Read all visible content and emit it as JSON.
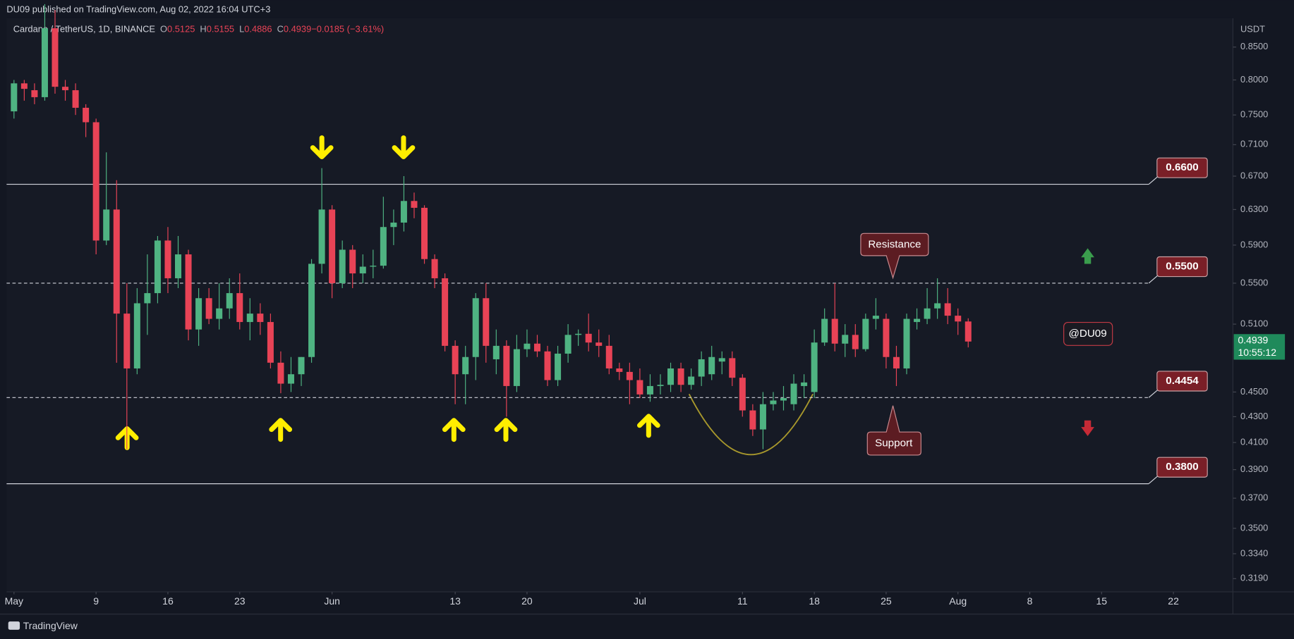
{
  "header": "DU09 published on TradingView.com, Aug 02, 2022 16:04 UTC+3",
  "footer": "TradingView",
  "chart_data": {
    "type": "candlestick",
    "legend": {
      "symbol": "Cardano / TetherUS, 1D, BINANCE",
      "items": [
        "O",
        "0.5125",
        "H",
        "0.5155",
        "L",
        "0.4886",
        "C",
        "0.4939",
        "−0.0185 (−3.61%)"
      ]
    },
    "y_axis_label": "USDT",
    "x": [
      0,
      1,
      2,
      3,
      4,
      5,
      6,
      7,
      8,
      9,
      10,
      11,
      12,
      13,
      14,
      15,
      16,
      17,
      18,
      19,
      20,
      21,
      22,
      23,
      24,
      25,
      26,
      27,
      28,
      29,
      30,
      31,
      32,
      33,
      34,
      35,
      36,
      37,
      38,
      39,
      40,
      41,
      42,
      43,
      44,
      45,
      46,
      47,
      48,
      49,
      50,
      51,
      52,
      53,
      54,
      55,
      56,
      57,
      58,
      59,
      60,
      61,
      62,
      63,
      64,
      65,
      66,
      67,
      68,
      69,
      70,
      71,
      72,
      73,
      74,
      75,
      76,
      77,
      78,
      79,
      80,
      81,
      82,
      83,
      84,
      85,
      86,
      87,
      88,
      89,
      90,
      91,
      92,
      93
    ],
    "open": [
      0.755,
      0.795,
      0.785,
      0.775,
      0.88,
      0.79,
      0.785,
      0.76,
      0.74,
      0.595,
      0.63,
      0.52,
      0.47,
      0.53,
      0.54,
      0.595,
      0.555,
      0.58,
      0.505,
      0.535,
      0.515,
      0.525,
      0.54,
      0.512,
      0.52,
      0.512,
      0.475,
      0.457,
      0.465,
      0.48,
      0.57,
      0.63,
      0.55,
      0.585,
      0.56,
      0.567,
      0.568,
      0.61,
      0.615,
      0.64,
      0.632,
      0.575,
      0.555,
      0.49,
      0.465,
      0.48,
      0.535,
      0.478,
      0.49,
      0.455,
      0.487,
      0.492,
      0.485,
      0.46,
      0.483,
      0.5,
      0.501,
      0.493,
      0.49,
      0.47,
      0.467,
      0.46,
      0.448,
      0.455,
      0.456,
      0.47,
      0.456,
      0.463,
      0.465,
      0.476,
      0.479,
      0.462,
      0.435,
      0.42,
      0.44,
      0.443,
      0.44,
      0.455,
      0.45,
      0.493,
      0.515,
      0.492,
      0.5,
      0.487,
      0.515,
      0.515,
      0.48,
      0.47,
      0.512,
      0.515,
      0.525,
      0.53,
      0.518,
      0.5125
    ],
    "high": [
      0.8,
      0.8,
      0.795,
      0.92,
      0.91,
      0.8,
      0.795,
      0.765,
      0.745,
      0.7,
      0.665,
      0.55,
      0.545,
      0.58,
      0.6,
      0.61,
      0.6,
      0.585,
      0.545,
      0.545,
      0.55,
      0.555,
      0.56,
      0.535,
      0.53,
      0.52,
      0.485,
      0.48,
      0.48,
      0.575,
      0.68,
      0.635,
      0.595,
      0.59,
      0.58,
      0.585,
      0.645,
      0.63,
      0.67,
      0.65,
      0.635,
      0.58,
      0.56,
      0.495,
      0.49,
      0.54,
      0.55,
      0.505,
      0.495,
      0.5,
      0.505,
      0.5,
      0.49,
      0.49,
      0.51,
      0.505,
      0.52,
      0.505,
      0.5,
      0.475,
      0.475,
      0.47,
      0.465,
      0.465,
      0.475,
      0.475,
      0.47,
      0.485,
      0.49,
      0.485,
      0.485,
      0.465,
      0.44,
      0.45,
      0.45,
      0.455,
      0.465,
      0.465,
      0.505,
      0.525,
      0.55,
      0.51,
      0.51,
      0.52,
      0.535,
      0.52,
      0.49,
      0.52,
      0.525,
      0.545,
      0.555,
      0.545,
      0.525,
      0.5155
    ],
    "low": [
      0.745,
      0.77,
      0.765,
      0.77,
      0.78,
      0.77,
      0.75,
      0.72,
      0.58,
      0.59,
      0.475,
      0.405,
      0.465,
      0.5,
      0.53,
      0.54,
      0.545,
      0.495,
      0.49,
      0.51,
      0.505,
      0.515,
      0.505,
      0.495,
      0.5,
      0.47,
      0.449,
      0.45,
      0.455,
      0.475,
      0.56,
      0.535,
      0.545,
      0.545,
      0.55,
      0.555,
      0.565,
      0.59,
      0.605,
      0.62,
      0.57,
      0.545,
      0.485,
      0.44,
      0.44,
      0.46,
      0.475,
      0.465,
      0.43,
      0.45,
      0.48,
      0.48,
      0.455,
      0.455,
      0.475,
      0.49,
      0.485,
      0.48,
      0.465,
      0.46,
      0.44,
      0.445,
      0.442,
      0.448,
      0.45,
      0.45,
      0.452,
      0.455,
      0.46,
      0.465,
      0.455,
      0.43,
      0.415,
      0.405,
      0.435,
      0.435,
      0.435,
      0.445,
      0.445,
      0.49,
      0.485,
      0.48,
      0.48,
      0.485,
      0.505,
      0.47,
      0.455,
      0.465,
      0.505,
      0.51,
      0.515,
      0.51,
      0.5,
      0.4886
    ],
    "close": [
      0.795,
      0.787,
      0.775,
      0.88,
      0.79,
      0.785,
      0.76,
      0.74,
      0.595,
      0.63,
      0.52,
      0.47,
      0.53,
      0.54,
      0.595,
      0.555,
      0.58,
      0.505,
      0.535,
      0.515,
      0.525,
      0.54,
      0.512,
      0.52,
      0.512,
      0.475,
      0.457,
      0.465,
      0.48,
      0.57,
      0.63,
      0.55,
      0.585,
      0.56,
      0.567,
      0.568,
      0.61,
      0.615,
      0.64,
      0.632,
      0.575,
      0.555,
      0.49,
      0.465,
      0.48,
      0.535,
      0.49,
      0.49,
      0.455,
      0.487,
      0.492,
      0.485,
      0.46,
      0.483,
      0.5,
      0.501,
      0.493,
      0.49,
      0.47,
      0.467,
      0.46,
      0.448,
      0.455,
      0.456,
      0.47,
      0.456,
      0.463,
      0.478,
      0.48,
      0.479,
      0.462,
      0.435,
      0.42,
      0.44,
      0.443,
      0.445,
      0.457,
      0.458,
      0.493,
      0.515,
      0.492,
      0.5,
      0.487,
      0.515,
      0.518,
      0.48,
      0.47,
      0.515,
      0.515,
      0.525,
      0.53,
      0.518,
      0.5125,
      0.4939
    ],
    "up_color": "#4fb382",
    "down_color": "#e84356",
    "xlim": [
      -0.72,
      118.8
    ],
    "xticks": [
      {
        "value": 0,
        "label": "May"
      },
      {
        "value": 8,
        "label": "9"
      },
      {
        "value": 15,
        "label": "16"
      },
      {
        "value": 22,
        "label": "23"
      },
      {
        "value": 31,
        "label": "Jun"
      },
      {
        "value": 43,
        "label": "13"
      },
      {
        "value": 50,
        "label": "20"
      },
      {
        "value": 61,
        "label": "Jul"
      },
      {
        "value": 71,
        "label": "11"
      },
      {
        "value": 78,
        "label": "18"
      },
      {
        "value": 85,
        "label": "25"
      },
      {
        "value": 92,
        "label": "Aug"
      },
      {
        "value": 99,
        "label": "8"
      },
      {
        "value": 106,
        "label": "15"
      },
      {
        "value": 113,
        "label": "22"
      }
    ],
    "ylim": [
      0.3118,
      0.899
    ],
    "ylog": true,
    "grid": false,
    "yticks": [
      {
        "value": 0.85,
        "label": "0.8500"
      },
      {
        "value": 0.8,
        "label": "0.8000"
      },
      {
        "value": 0.75,
        "label": "0.7500"
      },
      {
        "value": 0.71,
        "label": "0.7100"
      },
      {
        "value": 0.67,
        "label": "0.6700"
      },
      {
        "value": 0.63,
        "label": "0.6300"
      },
      {
        "value": 0.59,
        "label": "0.5900"
      },
      {
        "value": 0.55,
        "label": "0.5500"
      },
      {
        "value": 0.51,
        "label": "0.5100"
      },
      {
        "value": 0.45,
        "label": "0.4500"
      },
      {
        "value": 0.43,
        "label": "0.4300"
      },
      {
        "value": 0.41,
        "label": "0.4100"
      },
      {
        "value": 0.39,
        "label": "0.3900"
      },
      {
        "value": 0.37,
        "label": "0.3700"
      },
      {
        "value": 0.35,
        "label": "0.3500"
      },
      {
        "value": 0.334,
        "label": "0.3340"
      },
      {
        "value": 0.319,
        "label": "0.3190"
      }
    ],
    "levels": [
      {
        "value": 0.66,
        "label": "0.6600",
        "style": "solid"
      },
      {
        "value": 0.55,
        "label": "0.5500",
        "style": "dashed"
      },
      {
        "value": 0.4454,
        "label": "0.4454",
        "style": "dashed"
      },
      {
        "value": 0.38,
        "label": "0.3800",
        "style": "solid"
      }
    ],
    "last_price": {
      "value": 0.4939,
      "label": "0.4939",
      "countdown": "10:55:12",
      "color": "#1f8a5b"
    },
    "annotations": {
      "resistance": "Resistance",
      "support": "Support",
      "author": "@DU09"
    }
  }
}
